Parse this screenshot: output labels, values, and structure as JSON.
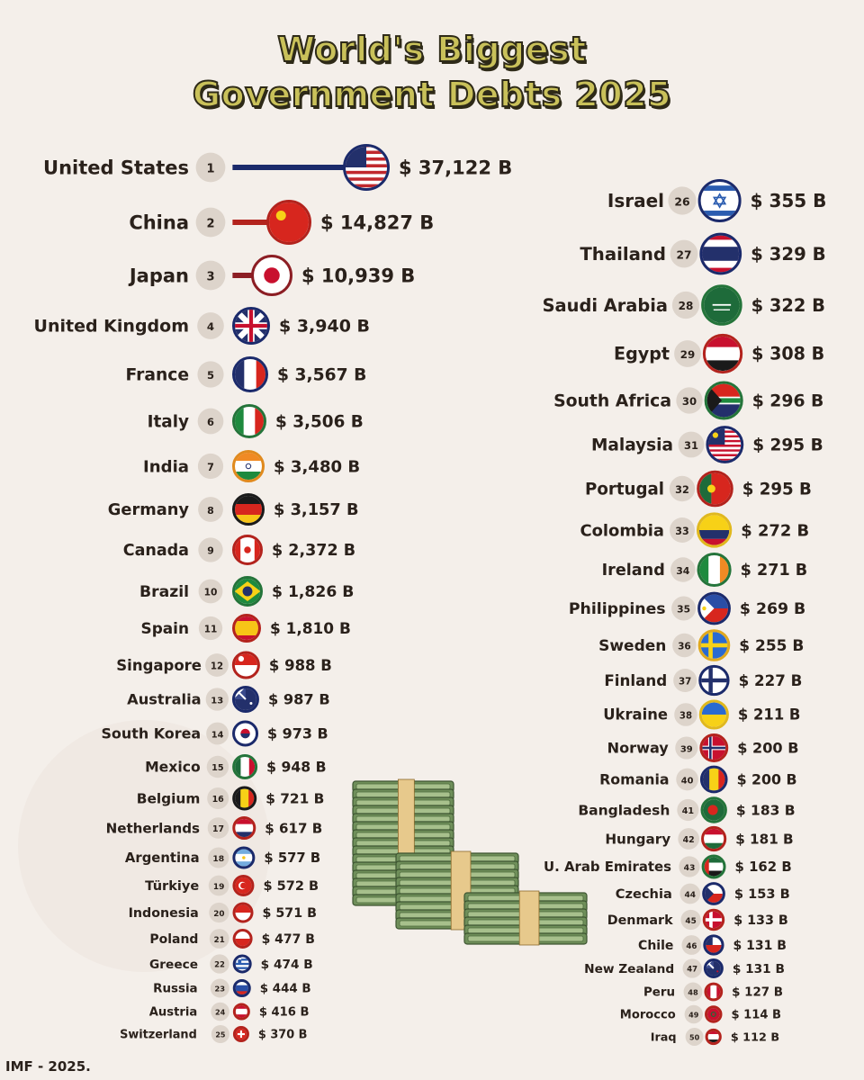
{
  "title": {
    "line1": "World's Biggest",
    "line2": "Government Debts 2025"
  },
  "source": "IMF - 2025.",
  "chart_data": {
    "type": "bar",
    "title": "World's Biggest Government Debts 2025",
    "unit_prefix": "$",
    "unit_suffix": "B",
    "entries": [
      {
        "rank": 1,
        "country": "United States",
        "value": 37122,
        "label": "$ 37,122 B",
        "flag": "us-flag-icon",
        "color": "#1b2a6b"
      },
      {
        "rank": 2,
        "country": "China",
        "value": 14827,
        "label": "$ 14,827 B",
        "flag": "china-flag-icon",
        "color": "#b3231d"
      },
      {
        "rank": 3,
        "country": "Japan",
        "value": 10939,
        "label": "$ 10,939 B",
        "flag": "japan-flag-icon",
        "color": "#8c1e24"
      },
      {
        "rank": 4,
        "country": "United Kingdom",
        "value": 3940,
        "label": "$ 3,940 B",
        "flag": "uk-flag-icon",
        "color": "#1b2a6b"
      },
      {
        "rank": 5,
        "country": "France",
        "value": 3567,
        "label": "$ 3,567 B",
        "flag": "france-flag-icon",
        "color": "#1b2a6b"
      },
      {
        "rank": 6,
        "country": "Italy",
        "value": 3506,
        "label": "$ 3,506 B",
        "flag": "italy-flag-icon",
        "color": "#24743a"
      },
      {
        "rank": 7,
        "country": "India",
        "value": 3480,
        "label": "$ 3,480 B",
        "flag": "india-flag-icon",
        "color": "#e08a1e"
      },
      {
        "rank": 8,
        "country": "Germany",
        "value": 3157,
        "label": "$ 3,157 B",
        "flag": "germany-flag-icon",
        "color": "#1a1a1a"
      },
      {
        "rank": 9,
        "country": "Canada",
        "value": 2372,
        "label": "$ 2,372 B",
        "flag": "canada-flag-icon",
        "color": "#b3231d"
      },
      {
        "rank": 10,
        "country": "Brazil",
        "value": 1826,
        "label": "$ 1,826 B",
        "flag": "brazil-flag-icon",
        "color": "#24743a"
      },
      {
        "rank": 11,
        "country": "Spain",
        "value": 1810,
        "label": "$ 1,810 B",
        "flag": "spain-flag-icon",
        "color": "#b3231d"
      },
      {
        "rank": 12,
        "country": "Singapore",
        "value": 988,
        "label": "$ 988 B",
        "flag": "singapore-flag-icon",
        "color": "#b3231d"
      },
      {
        "rank": 13,
        "country": "Australia",
        "value": 987,
        "label": "$ 987 B",
        "flag": "australia-flag-icon",
        "color": "#1b2a6b"
      },
      {
        "rank": 14,
        "country": "South Korea",
        "value": 973,
        "label": "$ 973 B",
        "flag": "south-korea-flag-icon",
        "color": "#1b2a6b"
      },
      {
        "rank": 15,
        "country": "Mexico",
        "value": 948,
        "label": "$ 948 B",
        "flag": "mexico-flag-icon",
        "color": "#24743a"
      },
      {
        "rank": 16,
        "country": "Belgium",
        "value": 721,
        "label": "$ 721 B",
        "flag": "belgium-flag-icon",
        "color": "#1a1a1a"
      },
      {
        "rank": 17,
        "country": "Netherlands",
        "value": 617,
        "label": "$ 617 B",
        "flag": "netherlands-flag-icon",
        "color": "#b3231d"
      },
      {
        "rank": 18,
        "country": "Argentina",
        "value": 577,
        "label": "$ 577 B",
        "flag": "argentina-flag-icon",
        "color": "#1b2a6b"
      },
      {
        "rank": 19,
        "country": "Türkiye",
        "value": 572,
        "label": "$ 572 B",
        "flag": "turkiye-flag-icon",
        "color": "#b3231d"
      },
      {
        "rank": 20,
        "country": "Indonesia",
        "value": 571,
        "label": "$ 571 B",
        "flag": "indonesia-flag-icon",
        "color": "#b3231d"
      },
      {
        "rank": 21,
        "country": "Poland",
        "value": 477,
        "label": "$ 477 B",
        "flag": "poland-flag-icon",
        "color": "#b3231d"
      },
      {
        "rank": 22,
        "country": "Greece",
        "value": 474,
        "label": "$ 474 B",
        "flag": "greece-flag-icon",
        "color": "#1b2a6b"
      },
      {
        "rank": 23,
        "country": "Russia",
        "value": 444,
        "label": "$ 444 B",
        "flag": "russia-flag-icon",
        "color": "#1b2a6b"
      },
      {
        "rank": 24,
        "country": "Austria",
        "value": 416,
        "label": "$ 416 B",
        "flag": "austria-flag-icon",
        "color": "#b3231d"
      },
      {
        "rank": 25,
        "country": "Switzerland",
        "value": 370,
        "label": "$ 370 B",
        "flag": "switzerland-flag-icon",
        "color": "#b3231d"
      },
      {
        "rank": 26,
        "country": "Israel",
        "value": 355,
        "label": "$ 355 B",
        "flag": "israel-flag-icon",
        "color": "#1b2a6b"
      },
      {
        "rank": 27,
        "country": "Thailand",
        "value": 329,
        "label": "$ 329 B",
        "flag": "thailand-flag-icon",
        "color": "#1b2a6b"
      },
      {
        "rank": 28,
        "country": "Saudi Arabia",
        "value": 322,
        "label": "$ 322 B",
        "flag": "saudi-arabia-flag-icon",
        "color": "#24743a"
      },
      {
        "rank": 29,
        "country": "Egypt",
        "value": 308,
        "label": "$ 308 B",
        "flag": "egypt-flag-icon",
        "color": "#b3231d"
      },
      {
        "rank": 30,
        "country": "South Africa",
        "value": 296,
        "label": "$ 296 B",
        "flag": "south-africa-flag-icon",
        "color": "#24743a"
      },
      {
        "rank": 31,
        "country": "Malaysia",
        "value": 295,
        "label": "$ 295 B",
        "flag": "malaysia-flag-icon",
        "color": "#1b2a6b"
      },
      {
        "rank": 32,
        "country": "Portugal",
        "value": 295,
        "label": "$ 295 B",
        "flag": "portugal-flag-icon",
        "color": "#b3231d"
      },
      {
        "rank": 33,
        "country": "Colombia",
        "value": 272,
        "label": "$ 272 B",
        "flag": "colombia-flag-icon",
        "color": "#e0b81e"
      },
      {
        "rank": 34,
        "country": "Ireland",
        "value": 271,
        "label": "$ 271 B",
        "flag": "ireland-flag-icon",
        "color": "#24743a"
      },
      {
        "rank": 35,
        "country": "Philippines",
        "value": 269,
        "label": "$ 269 B",
        "flag": "philippines-flag-icon",
        "color": "#1b2a6b"
      },
      {
        "rank": 36,
        "country": "Sweden",
        "value": 255,
        "label": "$ 255 B",
        "flag": "sweden-flag-icon",
        "color": "#e0a81e"
      },
      {
        "rank": 37,
        "country": "Finland",
        "value": 227,
        "label": "$ 227 B",
        "flag": "finland-flag-icon",
        "color": "#1b2a6b"
      },
      {
        "rank": 38,
        "country": "Ukraine",
        "value": 211,
        "label": "$ 211 B",
        "flag": "ukraine-flag-icon",
        "color": "#e0b81e"
      },
      {
        "rank": 39,
        "country": "Norway",
        "value": 200,
        "label": "$ 200 B",
        "flag": "norway-flag-icon",
        "color": "#b3231d"
      },
      {
        "rank": 40,
        "country": "Romania",
        "value": 200,
        "label": "$ 200 B",
        "flag": "romania-flag-icon",
        "color": "#1b2a6b"
      },
      {
        "rank": 41,
        "country": "Bangladesh",
        "value": 183,
        "label": "$ 183 B",
        "flag": "bangladesh-flag-icon",
        "color": "#24743a"
      },
      {
        "rank": 42,
        "country": "Hungary",
        "value": 181,
        "label": "$ 181 B",
        "flag": "hungary-flag-icon",
        "color": "#b3231d"
      },
      {
        "rank": 43,
        "country": "U. Arab Emirates",
        "value": 162,
        "label": "$ 162 B",
        "flag": "uae-flag-icon",
        "color": "#24743a"
      },
      {
        "rank": 44,
        "country": "Czechia",
        "value": 153,
        "label": "$ 153 B",
        "flag": "czechia-flag-icon",
        "color": "#1b2a6b"
      },
      {
        "rank": 45,
        "country": "Denmark",
        "value": 133,
        "label": "$ 133 B",
        "flag": "denmark-flag-icon",
        "color": "#b3231d"
      },
      {
        "rank": 46,
        "country": "Chile",
        "value": 131,
        "label": "$ 131 B",
        "flag": "chile-flag-icon",
        "color": "#1b2a6b"
      },
      {
        "rank": 47,
        "country": "New Zealand",
        "value": 131,
        "label": "$ 131 B",
        "flag": "new-zealand-flag-icon",
        "color": "#1b2a6b"
      },
      {
        "rank": 48,
        "country": "Peru",
        "value": 127,
        "label": "$ 127 B",
        "flag": "peru-flag-icon",
        "color": "#b3231d"
      },
      {
        "rank": 49,
        "country": "Morocco",
        "value": 114,
        "label": "$ 114 B",
        "flag": "morocco-flag-icon",
        "color": "#b3231d"
      },
      {
        "rank": 50,
        "country": "Iraq",
        "value": 112,
        "label": "$ 112 B",
        "flag": "iraq-flag-icon",
        "color": "#b3231d"
      }
    ]
  }
}
